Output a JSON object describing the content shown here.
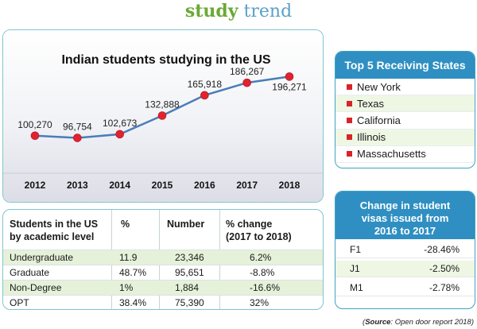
{
  "heading": {
    "word1": "study",
    "word2": "trend"
  },
  "chart_data": {
    "type": "line",
    "title": "Indian students studying in the US",
    "x": [
      "2012",
      "2013",
      "2014",
      "2015",
      "2016",
      "2017",
      "2018"
    ],
    "values": [
      100270,
      96754,
      102673,
      132888,
      165918,
      186267,
      196271
    ],
    "data_labels": [
      "100,270",
      "96,754",
      "102,673",
      "132,888",
      "165,918",
      "186,267",
      "196,271"
    ],
    "ylim": [
      60000,
      220000
    ],
    "colors": {
      "line": "#4a7db8",
      "marker": "#e02330"
    }
  },
  "states": {
    "title": "Top 5 Receiving States",
    "items": [
      "New York",
      "Texas",
      "California",
      "Illinois",
      "Massachusetts"
    ]
  },
  "visas": {
    "title": [
      "Change in student",
      "visas issued from",
      "2016 to 2017"
    ],
    "rows": [
      {
        "type": "F1",
        "value": "-28.46%"
      },
      {
        "type": "J1",
        "value": "-2.50%"
      },
      {
        "type": "M1",
        "value": "-2.78%"
      }
    ]
  },
  "level_table": {
    "headers": {
      "level": [
        "Students in the US",
        "by academic level"
      ],
      "percent": "%",
      "number": "Number",
      "change": [
        "% change",
        "(2017 to 2018)"
      ]
    },
    "rows": [
      {
        "level": "Undergraduate",
        "percent": "11.9",
        "number": "23,346",
        "change": "6.2%"
      },
      {
        "level": "Graduate",
        "percent": "48.7%",
        "number": "95,651",
        "change": "-8.8%"
      },
      {
        "level": "Non-Degree",
        "percent": "1%",
        "number": "1,884",
        "change": "-16.6%"
      },
      {
        "level": "OPT",
        "percent": "38.4%",
        "number": "75,390",
        "change": "32%"
      }
    ]
  },
  "source": {
    "label": "Source",
    "text": "Open door report 2018"
  },
  "colors": {
    "accent_blue": "#2f8fc2",
    "title_green": "#6aa936",
    "row_shade": "#e6f1d9"
  }
}
